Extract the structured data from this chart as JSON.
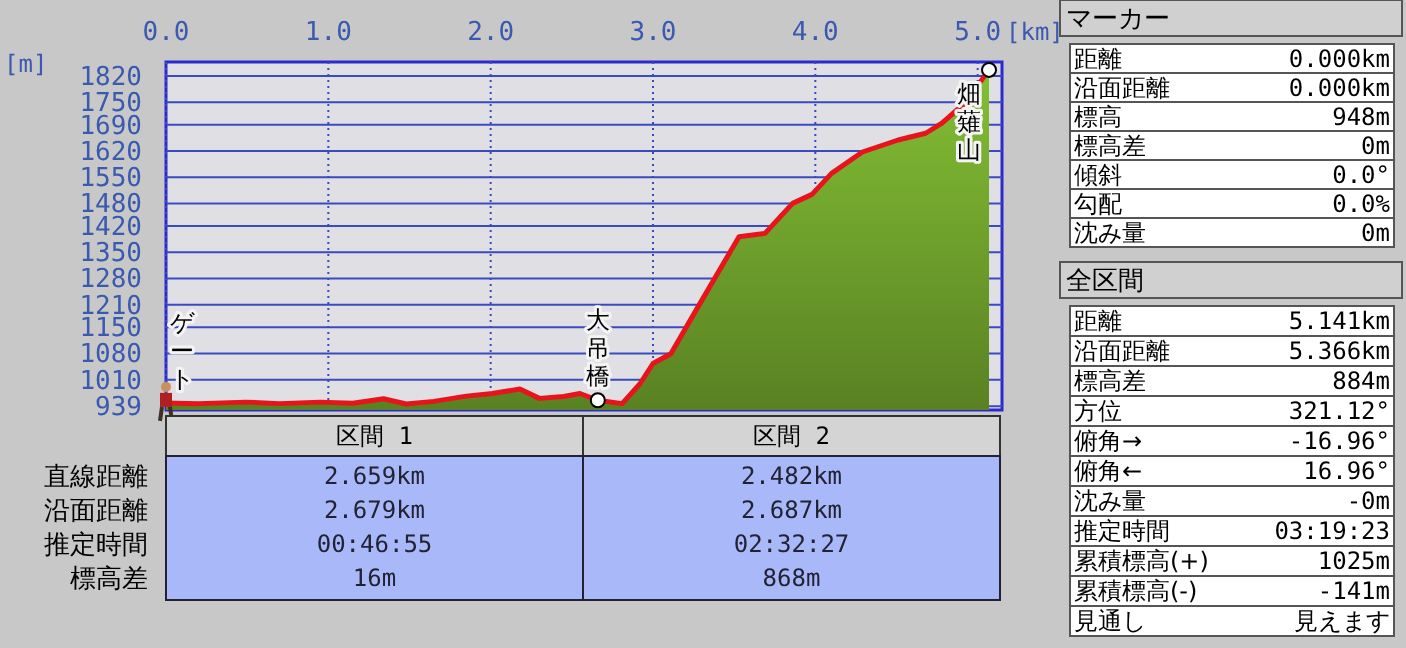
{
  "chart_data": [
    {
      "type": "area",
      "xlabel": "[km]",
      "ylabel": "[m]",
      "color": "#6a9a2a",
      "x": [
        0,
        0.2,
        0.49,
        0.7,
        0.95,
        1.15,
        1.34,
        1.48,
        1.65,
        1.85,
        2.01,
        2.18,
        2.3,
        2.45,
        2.55,
        2.66,
        2.81,
        2.92,
        3.0,
        3.11,
        3.28,
        3.53,
        3.69,
        3.86,
        3.98,
        4.1,
        4.29,
        4.51,
        4.68,
        4.78,
        4.92,
        5.01,
        5.07
      ],
      "values": [
        948,
        946,
        950,
        946,
        950,
        947,
        959,
        945,
        952,
        966,
        973,
        985,
        960,
        965,
        973,
        955,
        946,
        999,
        1053,
        1079,
        1206,
        1391,
        1400,
        1480,
        1504,
        1560,
        1617,
        1649,
        1667,
        1694,
        1747,
        1800,
        1836
      ],
      "xlim": [
        0,
        5.15
      ],
      "xticks": [
        {
          "value": 0,
          "label": "0.0"
        },
        {
          "value": 1,
          "label": "1.0"
        },
        {
          "value": 2,
          "label": "2.0"
        },
        {
          "value": 3,
          "label": "3.0"
        },
        {
          "value": 4,
          "label": "4.0"
        },
        {
          "value": 5,
          "label": "5.0"
        }
      ],
      "ylim": [
        929,
        1857
      ],
      "yticks": [
        939,
        1010,
        1080,
        1150,
        1210,
        1280,
        1350,
        1420,
        1480,
        1550,
        1620,
        1690,
        1750,
        1820
      ],
      "grid": true,
      "annotations": [
        {
          "text": "ゲート",
          "x": 0,
          "y": 948
        },
        {
          "text": "大吊橋",
          "x": 2.66,
          "y": 955
        },
        {
          "text": "畑薙山",
          "x": 5.07,
          "y": 1836
        }
      ]
    },
    {
      "type": "other",
      "categories": [
        "区間 1",
        "区間 2"
      ],
      "annotations": [
        "直線距離",
        "2.659km",
        "2.482km",
        "沿面距離",
        "2.679km",
        "2.687km",
        "推定時間",
        "00:46:55",
        "02:32:27",
        "標高差",
        "16m",
        "868m"
      ]
    },
    {
      "type": "other",
      "title": "マーカー",
      "annotations": [
        "距離",
        "0.000km",
        "沿面距離",
        "0.000km",
        "標高",
        "948m",
        "標高差",
        "0m",
        "傾斜",
        "0.0°",
        "勾配",
        "0.0%",
        "沈み量",
        "0m"
      ]
    },
    {
      "type": "other",
      "title": "全区間",
      "annotations": [
        "距離",
        "5.141km",
        "沿面距離",
        "5.366km",
        "標高差",
        "884m",
        "方位",
        "321.12°",
        "俯角→",
        "-16.96°",
        "俯角←",
        "16.96°",
        "沈み量",
        "-0m",
        "推定時間",
        "03:19:23",
        "累積標高(+)",
        "1025m",
        "累積標高(-)",
        "-141m",
        "見通し",
        "見えます"
      ]
    }
  ]
}
